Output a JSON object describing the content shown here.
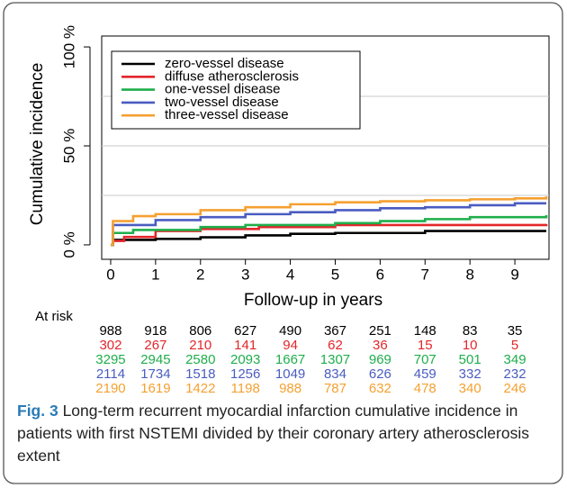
{
  "chart_data": {
    "type": "line",
    "step": true,
    "ylabel": "Cumulative incidence",
    "xlabel": "Follow-up in years",
    "xlim": [
      -0.2,
      9.76
    ],
    "ylim": [
      -7.3,
      105.5
    ],
    "xticks": [
      0,
      1,
      2,
      3,
      4,
      5,
      6,
      7,
      8,
      9
    ],
    "yticks": [
      {
        "value": 0,
        "label": "0 %"
      },
      {
        "value": 50,
        "label": "50 %"
      },
      {
        "value": 100,
        "label": "100 %"
      }
    ],
    "grid_lines": [
      25,
      50,
      75
    ],
    "legend": "top-left",
    "series": [
      {
        "name": "zero-vessel disease",
        "color": "#000000",
        "x": [
          0,
          0.05,
          1,
          2,
          3,
          4,
          5,
          7,
          9.7
        ],
        "values": [
          0,
          2.5,
          3,
          3.8,
          4.8,
          5.6,
          6,
          7,
          7
        ]
      },
      {
        "name": "diffuse atherosclerosis",
        "color": "#e3262b",
        "x": [
          0,
          0.05,
          0.3,
          1,
          2,
          3.3,
          5,
          9.7
        ],
        "values": [
          0,
          2,
          4,
          7,
          8,
          9,
          10,
          10.5
        ]
      },
      {
        "name": "one-vessel disease",
        "color": "#1fae4b",
        "x": [
          0,
          0.05,
          0.5,
          2,
          3,
          5,
          6,
          7,
          8,
          9.7
        ],
        "values": [
          0,
          6,
          7.5,
          9,
          10,
          11,
          12,
          13,
          14,
          15
        ]
      },
      {
        "name": "two-vessel disease",
        "color": "#4a5cc0",
        "x": [
          0,
          0.05,
          1,
          2,
          3,
          4,
          5,
          6,
          7,
          8,
          9,
          9.7
        ],
        "values": [
          0,
          10,
          12.5,
          14,
          15.5,
          16.5,
          17.5,
          18.5,
          19,
          20,
          21,
          21
        ]
      },
      {
        "name": "three-vessel disease",
        "color": "#f5a030",
        "x": [
          0,
          0.05,
          0.5,
          1,
          2,
          3,
          4,
          5,
          6,
          7,
          8,
          9,
          9.7
        ],
        "values": [
          0,
          12,
          14.5,
          15.5,
          17.5,
          19,
          20.5,
          21.5,
          22,
          22.5,
          23,
          23.5,
          24.5
        ]
      }
    ],
    "at_risk_title": "At risk",
    "at_risk": [
      [
        988,
        918,
        806,
        627,
        490,
        367,
        251,
        148,
        83,
        35
      ],
      [
        302,
        267,
        210,
        141,
        94,
        62,
        36,
        15,
        10,
        5
      ],
      [
        3295,
        2945,
        2580,
        2093,
        1667,
        1307,
        969,
        707,
        501,
        349
      ],
      [
        2114,
        1734,
        1518,
        1256,
        1049,
        834,
        626,
        459,
        332,
        232
      ],
      [
        2190,
        1619,
        1422,
        1198,
        988,
        787,
        632,
        478,
        340,
        246
      ]
    ]
  },
  "caption": {
    "label": "Fig. 3",
    "text": "Long-term recurrent myocardial infarction cumulative incidence in patients with first NSTEMI divided by their coronary artery atherosclerosis extent"
  }
}
